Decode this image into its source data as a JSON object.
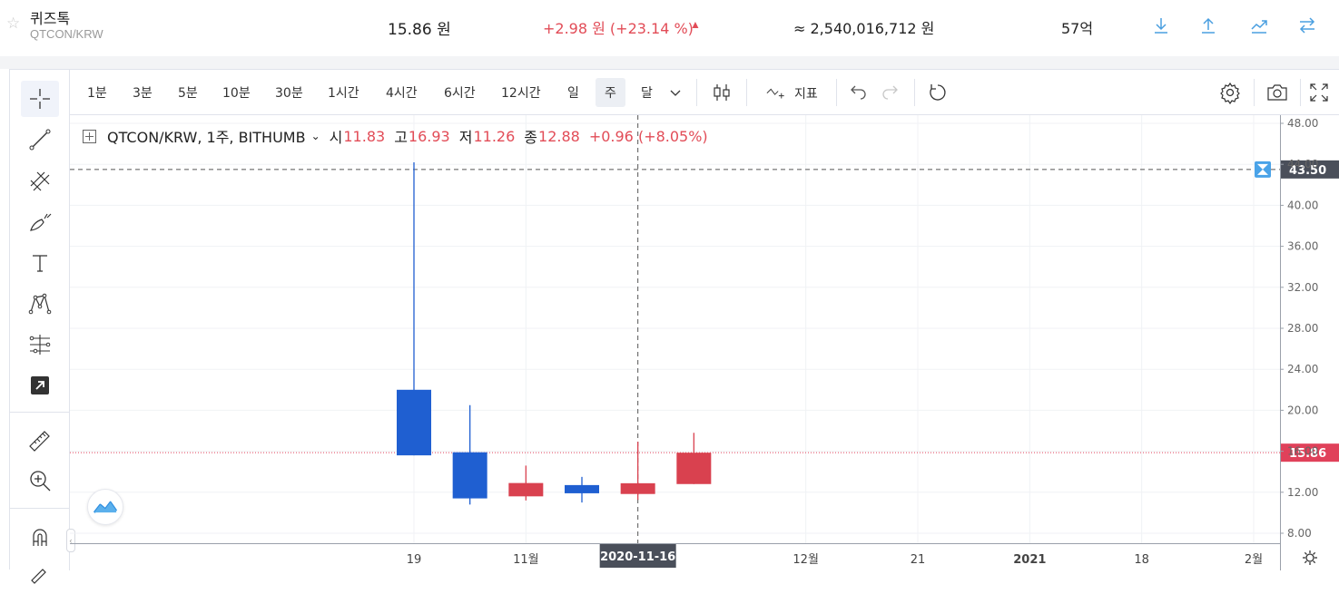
{
  "ticker": {
    "name": "퀴즈톡",
    "pair": "QTCON/KRW",
    "price": "15.86 원",
    "change": "+2.98 원 (+23.14 %)",
    "volume": "≈ 2,540,016,712 원",
    "market_cap": "57억",
    "buttons": [
      "download-icon",
      "upload-icon",
      "trend-icon",
      "swap-icon"
    ],
    "accent_color": "#4a9fe0",
    "up_color": "#e24c57"
  },
  "toolbar": {
    "intervals": [
      "1분",
      "3분",
      "5분",
      "10분",
      "30분",
      "1시간",
      "4시간",
      "6시간",
      "12시간",
      "일",
      "주",
      "달"
    ],
    "active_interval": "주",
    "indicators_label": "지표",
    "icons": [
      "chevron-down-icon",
      "candle-type-icon",
      "indicators-icon",
      "undo-icon",
      "redo-icon",
      "reload-icon",
      "settings-icon",
      "camera-icon",
      "fullscreen-icon"
    ]
  },
  "drawing_tools": [
    "crosshair-icon",
    "trend-line-icon",
    "fib-icon",
    "brush-icon",
    "text-icon",
    "pattern-icon",
    "forecast-icon",
    "arrow-icon",
    "ruler-icon",
    "zoom-in-icon",
    "magnet-icon"
  ],
  "legend": {
    "symbol": "QTCON/KRW, 1주, BITHUMB",
    "open_label": "시",
    "open": "11.83",
    "high_label": "고",
    "high": "16.93",
    "low_label": "저",
    "low": "11.26",
    "close_label": "종",
    "close": "12.88",
    "change": "+0.96 (+8.05%)"
  },
  "chart_data": {
    "type": "candlestick",
    "symbol": "QTCON/KRW, 1주, BITHUMB",
    "candles": [
      {
        "x": "2020-10-19",
        "open": 22.0,
        "high": 44.2,
        "low": 15.6,
        "close": 15.6
      },
      {
        "x": "2020-10-26",
        "open": 15.9,
        "high": 20.5,
        "low": 10.8,
        "close": 11.4
      },
      {
        "x": "2020-11-02",
        "open": 11.6,
        "high": 14.6,
        "low": 11.2,
        "close": 12.9
      },
      {
        "x": "2020-11-09",
        "open": 12.7,
        "high": 13.5,
        "low": 11.0,
        "close": 11.9
      },
      {
        "x": "2020-11-16",
        "open": 11.83,
        "high": 16.93,
        "low": 11.26,
        "close": 12.88
      },
      {
        "x": "2020-11-23",
        "open": 12.8,
        "high": 17.8,
        "low": 12.8,
        "close": 15.86
      }
    ],
    "up_color": "#d9414f",
    "down_color": "#1f5fd1",
    "y_ticks": [
      "48.00",
      "44.00",
      "40.00",
      "36.00",
      "32.00",
      "28.00",
      "24.00",
      "20.00",
      "16.00",
      "12.00",
      "8.00"
    ],
    "ylim": [
      7.5,
      48.5
    ],
    "x_ticks": [
      {
        "label": "19",
        "date": "2020-10-19",
        "bold": false
      },
      {
        "label": "11월",
        "date": "2020-11-02",
        "bold": false
      },
      {
        "label": "12월",
        "date": "2020-12-07",
        "bold": false
      },
      {
        "label": "21",
        "date": "2020-12-21",
        "bold": false
      },
      {
        "label": "2021",
        "date": "2021-01-04",
        "bold": true
      },
      {
        "label": "18",
        "date": "2021-01-18",
        "bold": false
      },
      {
        "label": "2월",
        "date": "2021-02-01",
        "bold": false
      }
    ],
    "crosshair": {
      "date_label": "2020-11-16",
      "price": 43.5,
      "price_label": "43.50"
    },
    "last_price": {
      "value": 15.86,
      "label": "15.86"
    },
    "grid": true
  }
}
